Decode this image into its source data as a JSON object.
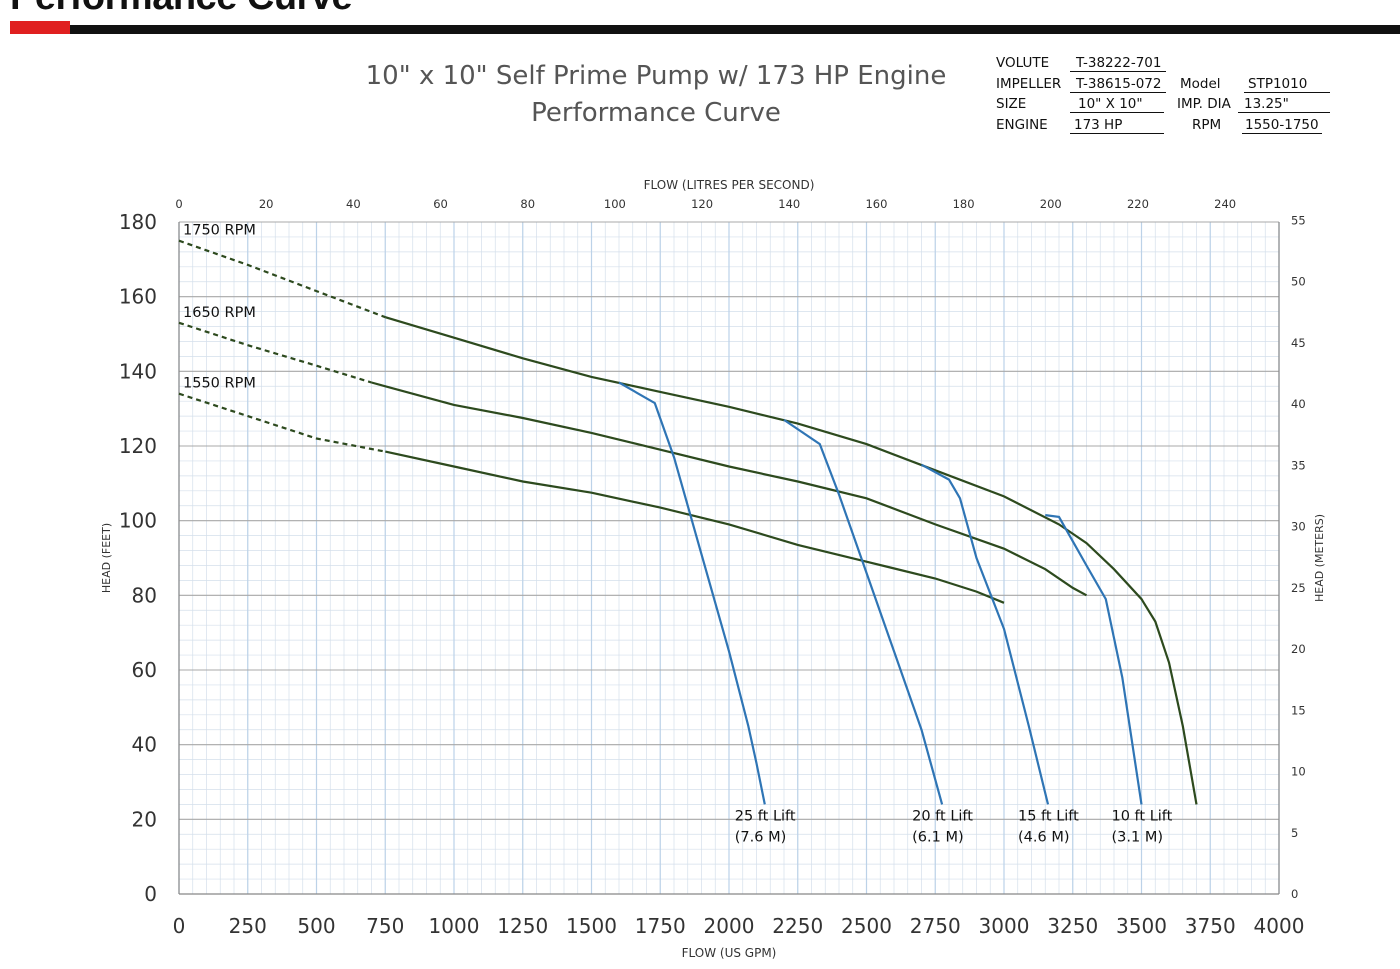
{
  "page": {
    "heading": "Performance Curve",
    "accent_red": "#e02020"
  },
  "chart_data": {
    "type": "line",
    "title_line1": "10\" x 10\" Self Prime Pump w/ 173 HP Engine",
    "title_line2": "Performance Curve",
    "specs": {
      "volute_label": "VOLUTE",
      "volute": "T-38222-701",
      "impeller_label": "IMPELLER",
      "impeller": "T-38615-072",
      "model_label": "Model",
      "model": "STP1010",
      "size_label": "SIZE",
      "size": "10\" X 10\"",
      "imp_dia_label": "IMP. DIA",
      "imp_dia": "13.25\"",
      "engine_label": "ENGINE",
      "engine": "173 HP",
      "rpm_label": "RPM",
      "rpm": "1550-1750"
    },
    "xlabel": "FLOW (US GPM)",
    "ylabel": "HEAD (FEET)",
    "x2label": "FLOW (LITRES PER SECOND)",
    "y2label": "HEAD (METERS)",
    "xlim": [
      0,
      4000
    ],
    "ylim": [
      0,
      180
    ],
    "x_ticks": [
      0,
      250,
      500,
      750,
      1000,
      1250,
      1500,
      1750,
      2000,
      2250,
      2500,
      2750,
      3000,
      3250,
      3500,
      3750,
      4000
    ],
    "y_ticks": [
      0,
      20,
      40,
      60,
      80,
      100,
      120,
      140,
      160,
      180
    ],
    "x2_ticks": [
      0,
      20,
      40,
      60,
      80,
      100,
      120,
      140,
      160,
      180,
      200,
      220,
      240
    ],
    "y2_ticks": [
      0,
      5,
      10,
      15,
      20,
      25,
      30,
      35,
      40,
      45,
      50,
      55
    ],
    "grid": true,
    "colors": {
      "rpm_curve": "#2d4a1e",
      "lift_curve": "#2f75b5",
      "grid_major": "#a8a8a8",
      "grid_minor": "#d4dfeb",
      "grid_blue": "#bcd2e8"
    },
    "rpm_curves": [
      {
        "name": "1750 RPM",
        "dashed_until": 750,
        "points": [
          [
            0,
            175
          ],
          [
            250,
            168.5
          ],
          [
            500,
            161.5
          ],
          [
            750,
            154.5
          ],
          [
            1000,
            149
          ],
          [
            1250,
            143.5
          ],
          [
            1500,
            138.5
          ],
          [
            1750,
            134.5
          ],
          [
            2000,
            130.5
          ],
          [
            2250,
            126
          ],
          [
            2500,
            120.5
          ],
          [
            2750,
            113.5
          ],
          [
            3000,
            106.5
          ],
          [
            3200,
            99
          ],
          [
            3300,
            94
          ],
          [
            3400,
            87
          ],
          [
            3500,
            79
          ],
          [
            3550,
            73
          ],
          [
            3600,
            62
          ],
          [
            3650,
            45
          ],
          [
            3700,
            24
          ]
        ]
      },
      {
        "name": "1650 RPM",
        "dashed_until": 700,
        "points": [
          [
            0,
            153
          ],
          [
            250,
            147
          ],
          [
            500,
            141.5
          ],
          [
            700,
            137
          ],
          [
            1000,
            131
          ],
          [
            1250,
            127.5
          ],
          [
            1500,
            123.5
          ],
          [
            1750,
            119
          ],
          [
            2000,
            114.5
          ],
          [
            2250,
            110.5
          ],
          [
            2500,
            106
          ],
          [
            2750,
            99
          ],
          [
            3000,
            92.5
          ],
          [
            3150,
            87
          ],
          [
            3250,
            82
          ],
          [
            3300,
            80
          ]
        ]
      },
      {
        "name": "1550 RPM",
        "dashed_until": 750,
        "points": [
          [
            0,
            134
          ],
          [
            250,
            128
          ],
          [
            500,
            122
          ],
          [
            750,
            118.5
          ],
          [
            1000,
            114.5
          ],
          [
            1250,
            110.5
          ],
          [
            1500,
            107.5
          ],
          [
            1750,
            103.5
          ],
          [
            2000,
            99
          ],
          [
            2250,
            93.5
          ],
          [
            2500,
            89
          ],
          [
            2750,
            84.5
          ],
          [
            2900,
            81
          ],
          [
            3000,
            78
          ]
        ]
      }
    ],
    "lift_curves": [
      {
        "name": "25 ft Lift",
        "metric": "(7.6 M)",
        "points": [
          [
            1600,
            137
          ],
          [
            1730,
            131.5
          ],
          [
            1800,
            117
          ],
          [
            1900,
            91
          ],
          [
            2000,
            65
          ],
          [
            2070,
            45
          ],
          [
            2100,
            35
          ],
          [
            2130,
            24
          ]
        ]
      },
      {
        "name": "20 ft Lift",
        "metric": "(6.1 M)",
        "points": [
          [
            2200,
            127
          ],
          [
            2330,
            120.5
          ],
          [
            2400,
            107
          ],
          [
            2500,
            86
          ],
          [
            2600,
            65
          ],
          [
            2700,
            44
          ],
          [
            2775,
            24
          ]
        ]
      },
      {
        "name": "15 ft Lift",
        "metric": "(4.6 M)",
        "points": [
          [
            2700,
            115
          ],
          [
            2800,
            111
          ],
          [
            2840,
            106
          ],
          [
            2900,
            90
          ],
          [
            3000,
            71
          ],
          [
            3090,
            45
          ],
          [
            3160,
            24
          ]
        ]
      },
      {
        "name": "10 ft Lift",
        "metric": "(3.1 M)",
        "points": [
          [
            3150,
            101.5
          ],
          [
            3200,
            101
          ],
          [
            3300,
            88
          ],
          [
            3370,
            79
          ],
          [
            3430,
            58
          ],
          [
            3500,
            24
          ]
        ]
      }
    ]
  }
}
